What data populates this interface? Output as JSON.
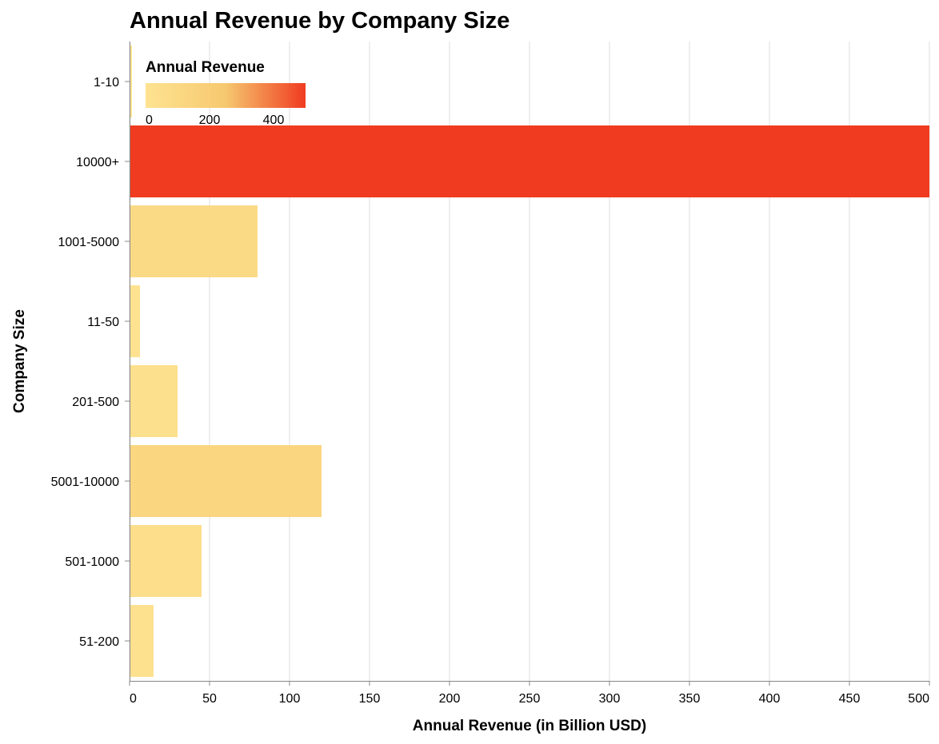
{
  "chart_data": {
    "type": "bar",
    "orientation": "horizontal",
    "title": "Annual Revenue by Company Size",
    "xlabel": "Annual Revenue (in Billion USD)",
    "ylabel": "Company Size",
    "xlim": [
      0,
      500
    ],
    "x_ticks": [
      0,
      50,
      100,
      150,
      200,
      250,
      300,
      350,
      400,
      450,
      500
    ],
    "grid": true,
    "categories": [
      "1-10",
      "10000+",
      "1001-5000",
      "11-50",
      "201-500",
      "5001-10000",
      "501-1000",
      "51-200"
    ],
    "values": [
      1.5,
      500,
      80,
      6.5,
      30,
      120,
      45,
      15
    ],
    "legend": {
      "title": "Annual Revenue",
      "placement": "top-left",
      "ticks": [
        0,
        200,
        400
      ],
      "domain": [
        0,
        500
      ],
      "color_start": "#fee391",
      "color_mid": "#f6c86f",
      "color_end": "#f03b20"
    }
  }
}
